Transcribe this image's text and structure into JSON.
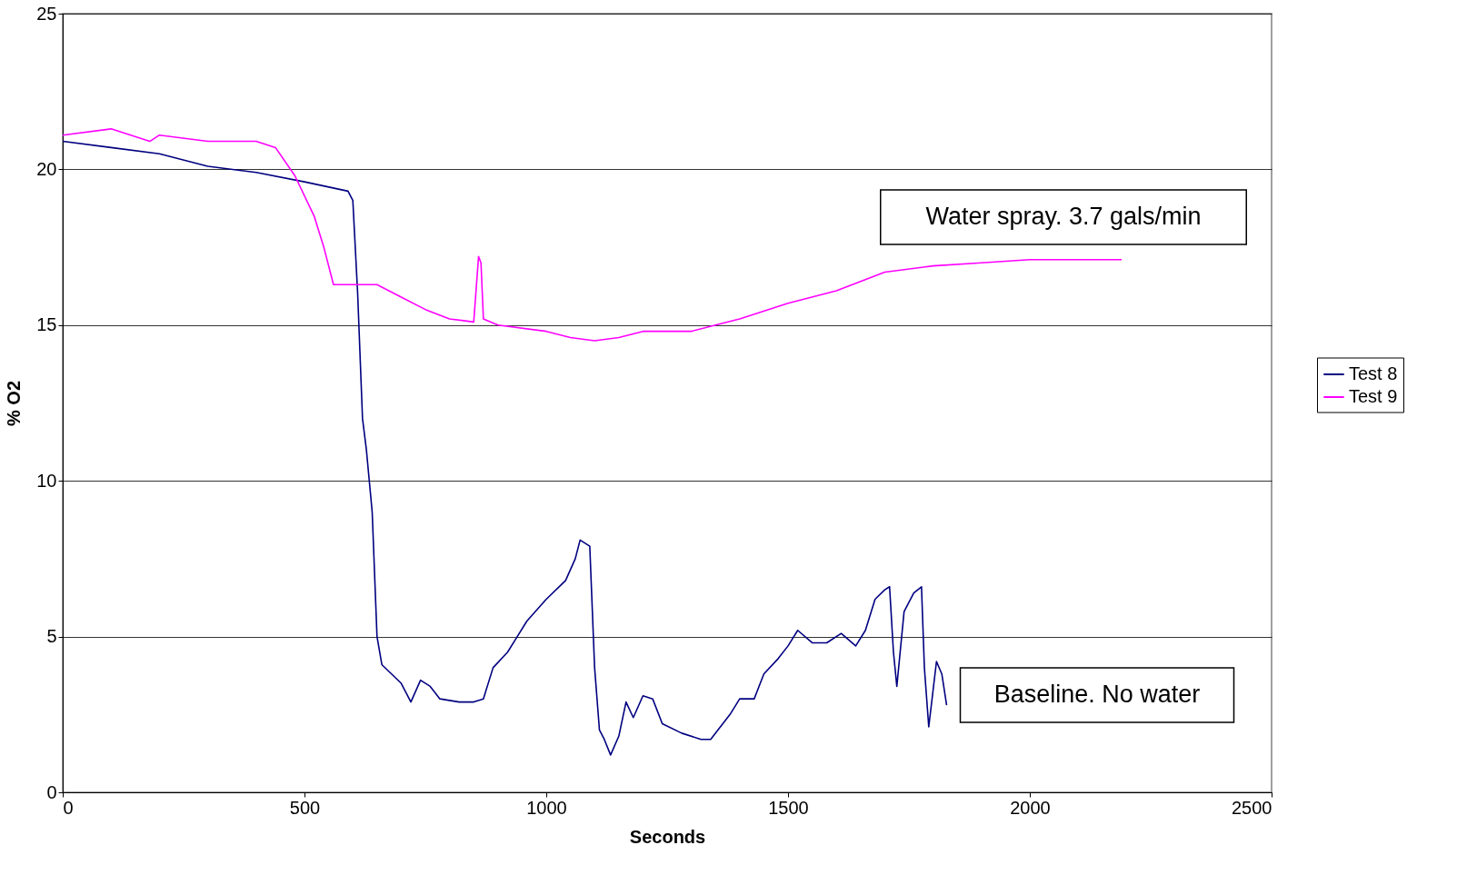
{
  "chart_data": {
    "type": "line",
    "xlabel": "Seconds",
    "ylabel": "% O2",
    "xlim": [
      0,
      2500
    ],
    "xticks": [
      0,
      500,
      1000,
      1500,
      2000,
      2500
    ],
    "ylim": [
      0,
      25
    ],
    "yticks": [
      0,
      5,
      10,
      15,
      20,
      25
    ],
    "grid": "y",
    "legend": "right",
    "marker": "none",
    "line_style": "solid",
    "annotations": [
      "Water spray. 3.7 gals/min",
      "Baseline. No water"
    ],
    "series": [
      {
        "name": "Test 8",
        "color": "#000080",
        "x": [
          0,
          100,
          200,
          300,
          400,
          500,
          590,
          600,
          610,
          620,
          628,
          640,
          650,
          660,
          680,
          700,
          720,
          740,
          760,
          780,
          820,
          850,
          870,
          890,
          920,
          940,
          960,
          1000,
          1040,
          1060,
          1070,
          1090,
          1100,
          1110,
          1120,
          1133,
          1150,
          1165,
          1180,
          1200,
          1220,
          1240,
          1280,
          1320,
          1340,
          1380,
          1400,
          1430,
          1450,
          1480,
          1500,
          1520,
          1550,
          1580,
          1610,
          1640,
          1660,
          1680,
          1700,
          1710,
          1718,
          1725,
          1740,
          1760,
          1776,
          1782,
          1791,
          1807,
          1818,
          1828
        ],
        "values": [
          20.9,
          20.7,
          20.5,
          20.1,
          19.9,
          19.6,
          19.3,
          19.0,
          16,
          12,
          11,
          9,
          5,
          4.1,
          3.8,
          3.5,
          2.9,
          3.6,
          3.4,
          3.0,
          2.9,
          2.9,
          3.0,
          4.0,
          4.5,
          5.0,
          5.5,
          6.2,
          6.8,
          7.5,
          8.1,
          7.9,
          4,
          2,
          1.7,
          1.2,
          1.8,
          2.9,
          2.4,
          3.1,
          3.0,
          2.2,
          1.9,
          1.7,
          1.7,
          2.5,
          3.0,
          3.0,
          3.8,
          4.3,
          4.7,
          5.2,
          4.8,
          4.8,
          5.1,
          4.7,
          5.2,
          6.2,
          6.5,
          6.6,
          4.5,
          3.4,
          5.8,
          6.4,
          6.6,
          4,
          2.1,
          4.2,
          3.8,
          2.8
        ]
      },
      {
        "name": "Test 9",
        "color": "#ff00ff",
        "x": [
          0,
          100,
          180,
          200,
          300,
          400,
          440,
          480,
          520,
          540,
          560,
          600,
          650,
          700,
          750,
          800,
          850,
          860,
          865,
          870,
          900,
          1000,
          1050,
          1100,
          1150,
          1200,
          1300,
          1350,
          1400,
          1500,
          1600,
          1700,
          1800,
          1900,
          2000,
          2100,
          2190
        ],
        "values": [
          21.1,
          21.3,
          20.9,
          21.1,
          20.9,
          20.9,
          20.7,
          19.8,
          18.5,
          17.5,
          16.3,
          16.3,
          16.3,
          15.9,
          15.5,
          15.2,
          15.1,
          17.2,
          17.0,
          15.2,
          15.0,
          14.8,
          14.6,
          14.5,
          14.6,
          14.8,
          14.8,
          15.0,
          15.2,
          15.7,
          16.1,
          16.7,
          16.9,
          17.0,
          17.1,
          17.1,
          17.1
        ]
      }
    ]
  }
}
